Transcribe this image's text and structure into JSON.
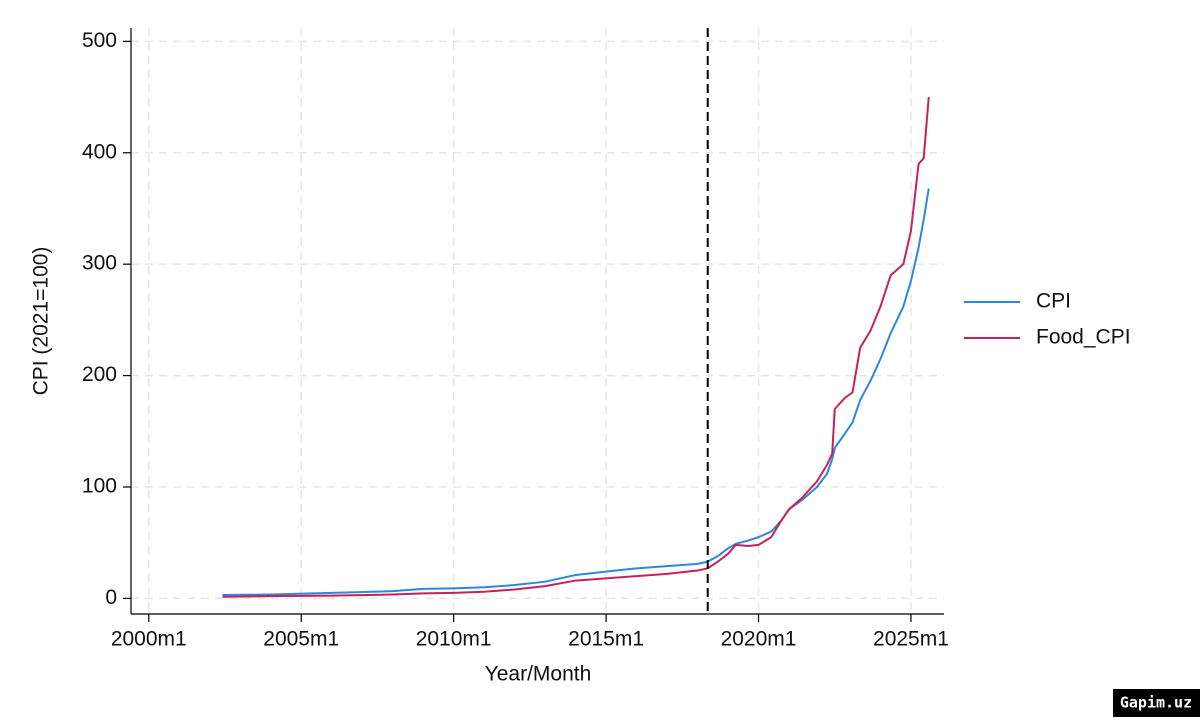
{
  "chart_data": {
    "type": "line",
    "y_label": "CPI (2021=100)",
    "x_label": "Year/Month",
    "x": [
      "2002m6",
      "2004m1",
      "2006m1",
      "2008m1",
      "2009m1",
      "2010m1",
      "2011m1",
      "2012m1",
      "2013m1",
      "2014m1",
      "2015m1",
      "2016m1",
      "2017m1",
      "2018m1",
      "2018m5",
      "2018m9",
      "2019m1",
      "2019m4",
      "2019m9",
      "2020m1",
      "2020m6",
      "2020m10",
      "2021m1",
      "2021m6",
      "2021m12",
      "2022m4",
      "2022m6",
      "2022m7",
      "2022m11",
      "2023m2",
      "2023m5",
      "2023m9",
      "2024m1",
      "2024m5",
      "2024m10",
      "2025m1",
      "2025m4",
      "2025m6",
      "2025m8"
    ],
    "series": [
      {
        "name": "CPI",
        "color": "#2f86e0",
        "values": [
          3,
          3.5,
          5,
          6.5,
          8.5,
          9,
          10,
          12,
          15,
          21,
          24,
          27,
          29,
          31,
          33,
          38,
          45,
          49,
          52,
          55,
          60,
          70,
          80,
          88,
          100,
          112,
          125,
          135,
          148,
          158,
          178,
          195,
          215,
          238,
          262,
          285,
          315,
          340,
          368
        ]
      },
      {
        "name": "Food_CPI",
        "color": "#c8215a",
        "values": [
          1.5,
          2,
          2.5,
          3.5,
          4.5,
          5,
          6,
          8,
          11,
          16,
          18,
          20,
          22,
          25,
          27,
          33,
          40,
          48,
          47,
          48,
          55,
          70,
          80,
          90,
          105,
          120,
          130,
          170,
          180,
          185,
          225,
          240,
          262,
          290,
          300,
          330,
          390,
          395,
          450
        ]
      }
    ],
    "xlim": [
      "1999m6",
      "2026m2"
    ],
    "xticks": [
      "2000m1",
      "2005m1",
      "2010m1",
      "2015m1",
      "2020m1",
      "2025m1"
    ],
    "ylim": [
      -14,
      512
    ],
    "yticks": [
      0,
      100,
      200,
      300,
      400,
      500
    ],
    "vline": "2018m5",
    "grid": true,
    "legend": "right",
    "watermark": "Gapim.uz"
  }
}
